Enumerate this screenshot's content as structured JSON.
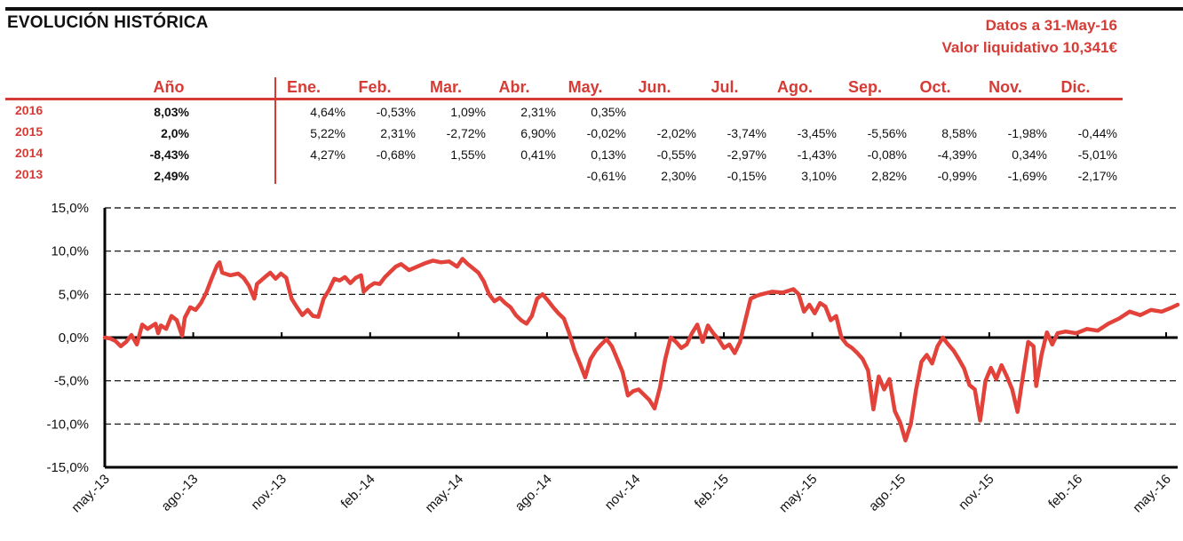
{
  "header": {
    "title": "EVOLUCIÓN HISTÓRICA",
    "date_label": "Datos a 31-May-16",
    "nav_label": "Valor liquidativo 10,341€"
  },
  "table": {
    "year_header": "Año",
    "month_headers": [
      "Ene.",
      "Feb.",
      "Mar.",
      "Abr.",
      "May.",
      "Jun.",
      "Jul.",
      "Ago.",
      "Sep.",
      "Oct.",
      "Nov.",
      "Dic."
    ],
    "rows": [
      {
        "year": "2016",
        "annual": "8,03%",
        "months": [
          "4,64%",
          "-0,53%",
          "1,09%",
          "2,31%",
          "0,35%",
          "",
          "",
          "",
          "",
          "",
          "",
          ""
        ]
      },
      {
        "year": "2015",
        "annual": "2,0%",
        "months": [
          "5,22%",
          "2,31%",
          "-2,72%",
          "6,90%",
          "-0,02%",
          "-2,02%",
          "-3,74%",
          "-3,45%",
          "-5,56%",
          "8,58%",
          "-1,98%",
          "-0,44%"
        ]
      },
      {
        "year": "2014",
        "annual": "-8,43%",
        "months": [
          "4,27%",
          "-0,68%",
          "1,55%",
          "0,41%",
          "0,13%",
          "-0,55%",
          "-2,97%",
          "-1,43%",
          "-0,08%",
          "-4,39%",
          "0,34%",
          "-5,01%"
        ]
      },
      {
        "year": "2013",
        "annual": "2,49%",
        "months": [
          "",
          "",
          "",
          "",
          "-0,61%",
          "2,30%",
          "-0,15%",
          "3,10%",
          "2,82%",
          "-0,99%",
          "-1,69%",
          "-2,17%"
        ]
      }
    ]
  },
  "chart_data": {
    "type": "line",
    "title": "",
    "xlabel": "",
    "ylabel": "",
    "ylim": [
      -15,
      15
    ],
    "y_ticks": [
      "15,0%",
      "10,0%",
      "5,0%",
      "0,0%",
      "-5,0%",
      "-10,0%",
      "-15,0%"
    ],
    "y_tick_values": [
      15,
      10,
      5,
      0,
      -5,
      -10,
      -15
    ],
    "x_ticks": [
      "may.-13",
      "ago.-13",
      "nov.-13",
      "feb.-14",
      "may.-14",
      "ago.-14",
      "nov.-14",
      "feb.-15",
      "may.-15",
      "ago.-15",
      "nov.-15",
      "feb.-16",
      "may.-16"
    ],
    "grid": "horizontal dashed",
    "line_color": "#e2423a",
    "series": [
      {
        "values": [
          [
            0,
            0.0
          ],
          [
            0.1,
            -0.1
          ],
          [
            0.2,
            -0.4
          ],
          [
            0.3,
            -1.0
          ],
          [
            0.4,
            -0.5
          ],
          [
            0.5,
            0.3
          ],
          [
            0.6,
            -0.8
          ],
          [
            0.7,
            1.5
          ],
          [
            0.8,
            1.0
          ],
          [
            0.95,
            1.6
          ],
          [
            1.0,
            0.5
          ],
          [
            1.05,
            1.4
          ],
          [
            1.15,
            1.0
          ],
          [
            1.25,
            2.5
          ],
          [
            1.35,
            2.0
          ],
          [
            1.45,
            0.2
          ],
          [
            1.5,
            2.3
          ],
          [
            1.6,
            3.5
          ],
          [
            1.7,
            3.2
          ],
          [
            1.8,
            4.0
          ],
          [
            1.9,
            5.2
          ],
          [
            2.0,
            6.8
          ],
          [
            2.1,
            8.3
          ],
          [
            2.15,
            8.7
          ],
          [
            2.2,
            7.5
          ],
          [
            2.35,
            7.2
          ],
          [
            2.5,
            7.4
          ],
          [
            2.6,
            6.9
          ],
          [
            2.7,
            6.0
          ],
          [
            2.8,
            4.5
          ],
          [
            2.85,
            6.2
          ],
          [
            3.0,
            7.0
          ],
          [
            3.1,
            7.5
          ],
          [
            3.2,
            6.8
          ],
          [
            3.3,
            7.4
          ],
          [
            3.4,
            6.9
          ],
          [
            3.5,
            4.5
          ],
          [
            3.6,
            3.5
          ],
          [
            3.7,
            2.6
          ],
          [
            3.8,
            3.2
          ],
          [
            3.9,
            2.5
          ],
          [
            4.0,
            2.4
          ],
          [
            4.1,
            4.5
          ],
          [
            4.2,
            5.5
          ],
          [
            4.3,
            6.8
          ],
          [
            4.4,
            6.6
          ],
          [
            4.5,
            7.0
          ],
          [
            4.6,
            6.3
          ],
          [
            4.7,
            6.9
          ],
          [
            4.8,
            7.2
          ],
          [
            4.85,
            5.3
          ],
          [
            4.95,
            5.9
          ],
          [
            5.05,
            6.3
          ],
          [
            5.15,
            6.2
          ],
          [
            5.25,
            7.0
          ],
          [
            5.35,
            7.6
          ],
          [
            5.45,
            8.2
          ],
          [
            5.55,
            8.5
          ],
          [
            5.7,
            7.8
          ],
          [
            5.85,
            8.2
          ],
          [
            6.0,
            8.6
          ],
          [
            6.15,
            8.9
          ],
          [
            6.3,
            8.7
          ],
          [
            6.45,
            8.8
          ],
          [
            6.6,
            8.2
          ],
          [
            6.7,
            9.1
          ],
          [
            6.8,
            8.5
          ],
          [
            6.9,
            8.0
          ],
          [
            7.0,
            7.5
          ],
          [
            7.1,
            6.5
          ],
          [
            7.2,
            5.0
          ],
          [
            7.3,
            4.2
          ],
          [
            7.4,
            4.6
          ],
          [
            7.5,
            4.0
          ],
          [
            7.6,
            3.5
          ],
          [
            7.7,
            2.6
          ],
          [
            7.8,
            2.0
          ],
          [
            7.9,
            1.6
          ],
          [
            8.0,
            2.5
          ],
          [
            8.1,
            4.5
          ],
          [
            8.2,
            5.0
          ],
          [
            8.3,
            4.3
          ],
          [
            8.4,
            3.5
          ],
          [
            8.5,
            2.8
          ],
          [
            8.6,
            2.2
          ],
          [
            8.7,
            0.5
          ],
          [
            8.8,
            -1.5
          ],
          [
            8.9,
            -3.0
          ],
          [
            9.0,
            -4.6
          ],
          [
            9.1,
            -2.5
          ],
          [
            9.2,
            -1.5
          ],
          [
            9.3,
            -0.8
          ],
          [
            9.4,
            -0.2
          ],
          [
            9.5,
            -1.0
          ],
          [
            9.6,
            -2.5
          ],
          [
            9.7,
            -4.0
          ],
          [
            9.8,
            -6.7
          ],
          [
            9.9,
            -6.2
          ],
          [
            10.0,
            -6.0
          ],
          [
            10.1,
            -6.6
          ],
          [
            10.2,
            -7.2
          ],
          [
            10.3,
            -8.2
          ],
          [
            10.4,
            -5.8
          ],
          [
            10.5,
            -2.5
          ],
          [
            10.6,
            0.0
          ],
          [
            10.7,
            -0.5
          ],
          [
            10.8,
            -1.2
          ],
          [
            10.9,
            -0.8
          ],
          [
            11.0,
            0.5
          ],
          [
            11.1,
            1.5
          ],
          [
            11.2,
            -0.5
          ],
          [
            11.3,
            1.4
          ],
          [
            11.4,
            0.5
          ],
          [
            11.5,
            -0.2
          ],
          [
            11.6,
            -1.2
          ],
          [
            11.7,
            -0.8
          ],
          [
            11.8,
            -1.8
          ],
          [
            11.9,
            -0.5
          ],
          [
            12.0,
            2.0
          ],
          [
            12.1,
            4.5
          ],
          [
            12.2,
            4.8
          ],
          [
            12.3,
            5.0
          ],
          [
            12.5,
            5.3
          ],
          [
            12.7,
            5.2
          ],
          [
            12.9,
            5.6
          ],
          [
            13.0,
            5.0
          ],
          [
            13.1,
            3.0
          ],
          [
            13.2,
            3.8
          ],
          [
            13.3,
            2.8
          ],
          [
            13.4,
            4.0
          ],
          [
            13.5,
            3.6
          ],
          [
            13.6,
            2.0
          ],
          [
            13.7,
            2.5
          ],
          [
            13.8,
            0.0
          ],
          [
            13.9,
            -0.8
          ],
          [
            14.0,
            -1.2
          ],
          [
            14.1,
            -1.8
          ],
          [
            14.2,
            -2.5
          ],
          [
            14.3,
            -3.8
          ],
          [
            14.4,
            -8.3
          ],
          [
            14.5,
            -4.5
          ],
          [
            14.6,
            -6.0
          ],
          [
            14.7,
            -4.8
          ],
          [
            14.8,
            -8.5
          ],
          [
            14.9,
            -9.8
          ],
          [
            15.0,
            -11.9
          ],
          [
            15.1,
            -10.0
          ],
          [
            15.2,
            -6.0
          ],
          [
            15.3,
            -2.8
          ],
          [
            15.4,
            -2.0
          ],
          [
            15.5,
            -3.0
          ],
          [
            15.6,
            -1.0
          ],
          [
            15.7,
            0.0
          ],
          [
            15.8,
            -0.8
          ],
          [
            15.9,
            -1.5
          ],
          [
            16.0,
            -2.5
          ],
          [
            16.1,
            -3.6
          ],
          [
            16.2,
            -5.5
          ],
          [
            16.3,
            -6.0
          ],
          [
            16.4,
            -9.6
          ],
          [
            16.5,
            -5.0
          ],
          [
            16.6,
            -3.5
          ],
          [
            16.7,
            -4.8
          ],
          [
            16.8,
            -3.2
          ],
          [
            16.9,
            -4.5
          ],
          [
            17.0,
            -6.0
          ],
          [
            17.1,
            -8.6
          ],
          [
            17.2,
            -4.5
          ],
          [
            17.3,
            -0.5
          ],
          [
            17.4,
            -1.0
          ],
          [
            17.45,
            -5.6
          ],
          [
            17.55,
            -2.0
          ],
          [
            17.65,
            0.6
          ],
          [
            17.75,
            -0.8
          ],
          [
            17.85,
            0.5
          ],
          [
            18.0,
            0.7
          ],
          [
            18.2,
            0.5
          ],
          [
            18.4,
            1.0
          ],
          [
            18.6,
            0.8
          ],
          [
            18.8,
            1.6
          ],
          [
            19.0,
            2.2
          ],
          [
            19.2,
            3.0
          ],
          [
            19.4,
            2.6
          ],
          [
            19.6,
            3.2
          ],
          [
            19.8,
            3.0
          ],
          [
            20.0,
            3.5
          ],
          [
            20.1,
            3.8
          ]
        ]
      }
    ]
  }
}
